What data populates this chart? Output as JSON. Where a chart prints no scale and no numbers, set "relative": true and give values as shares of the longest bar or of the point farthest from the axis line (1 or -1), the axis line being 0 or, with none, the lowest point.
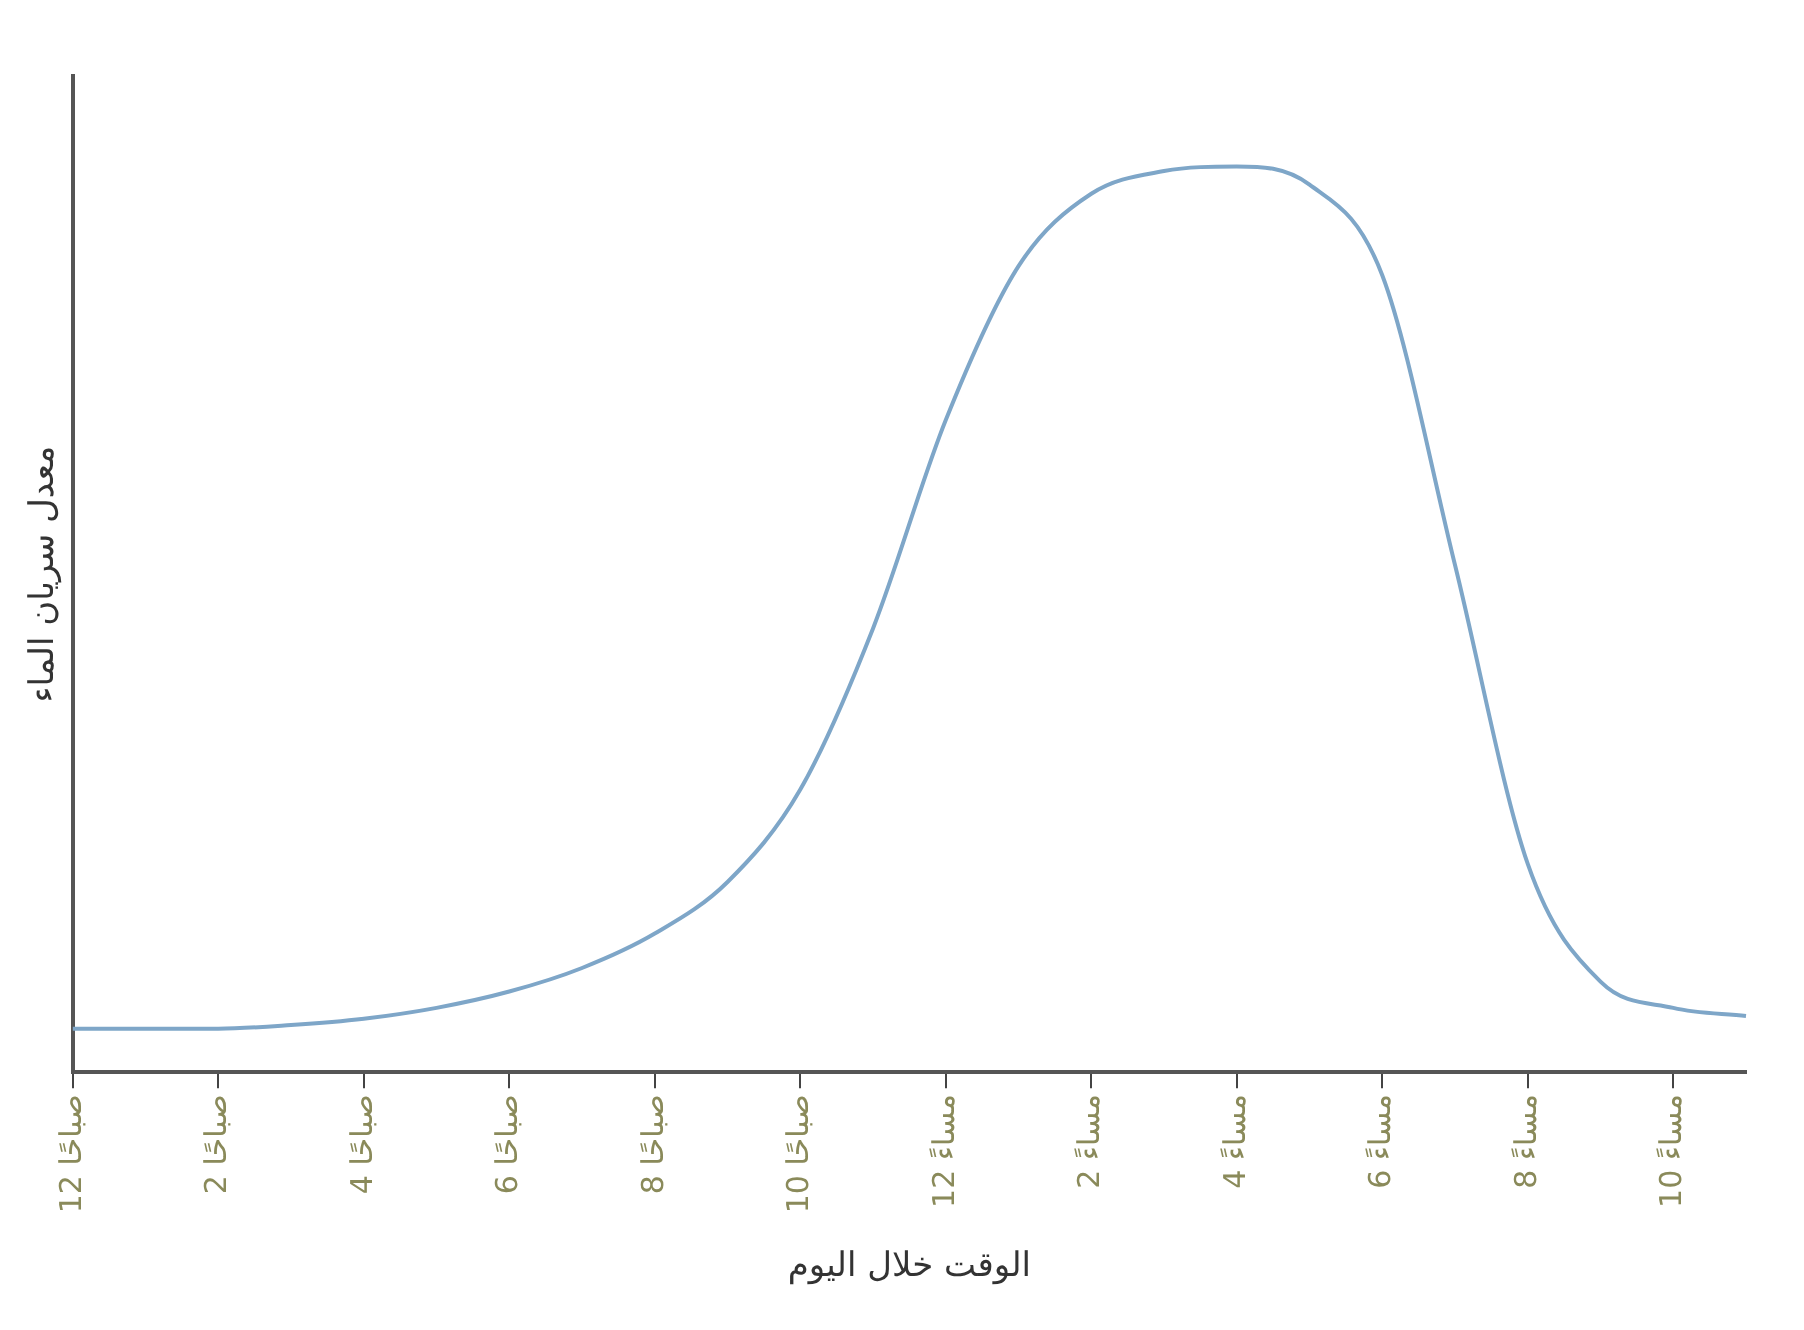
{
  "chart_data": {
    "type": "line",
    "relative": true,
    "xlabel": "الوقت خلال اليوم",
    "ylabel": "معدل سريان الماء",
    "categories": [
      "12 صباحًا",
      null,
      "2 صباحًا",
      null,
      "4 صباحًا",
      null,
      "6 صباحًا",
      null,
      "8 صباحًا",
      null,
      "10 صباحًا",
      null,
      "12 مساءً",
      null,
      "2 مساءً",
      null,
      "4 مساءً",
      null,
      "6 مساءً",
      null,
      "8 مساءً",
      null,
      "10 مساءً",
      null
    ],
    "series": [
      {
        "color": "#7ea6c8",
        "values": [
          0.048,
          0.048,
          0.048,
          0.052,
          0.059,
          0.071,
          0.089,
          0.115,
          0.153,
          0.21,
          0.312,
          0.49,
          0.72,
          0.89,
          0.97,
          0.995,
          1,
          0.98,
          0.88,
          0.56,
          0.23,
          0.1,
          0.071,
          0.062
        ]
      }
    ],
    "grid": false,
    "legend": false,
    "marker": "none",
    "line_style": "solid"
  }
}
